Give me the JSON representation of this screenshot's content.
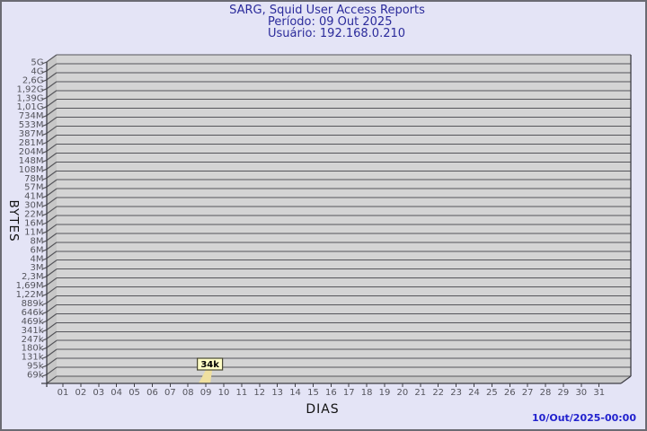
{
  "title": {
    "line1": "SARG, Squid User Access Reports",
    "line2": "Período: 09 Out 2025",
    "line3": "Usuário: 192.168.0.210"
  },
  "footer": {
    "timestamp": "10/Out/2025-00:00"
  },
  "colors": {
    "background": "#E4E4F6",
    "border": "#6B6B73",
    "wall": "#D4D4D4",
    "wall_side": "#C7C7C7",
    "grid": "#55555A",
    "edge": "#3F3F46",
    "tick_text": "#54545C",
    "axis_title_text": "#111111",
    "title_text": "#2B2B9B",
    "timestamp_text": "#2222CE",
    "bar": "#EFE0A0",
    "callout_fill": "#FFFDC6",
    "callout_border": "#474732",
    "callout_text": "#000000"
  },
  "chart_data": {
    "type": "bar",
    "title": "SARG, Squid User Access Reports",
    "subtitle": "Período: 09 Out 2025",
    "user_line": "Usuário: 192.168.0.210",
    "xlabel": "DIAS",
    "ylabel": "BYTES",
    "y_scale": "log",
    "y_axis_top_label": "5G",
    "y_axis_bottom_label": "69k",
    "grid": true,
    "y_ticks": [
      "5G",
      "4G",
      "2,6G",
      "1,92G",
      "1,39G",
      "1,01G",
      "734M",
      "533M",
      "387M",
      "281M",
      "204M",
      "148M",
      "108M",
      "78M",
      "57M",
      "41M",
      "30M",
      "22M",
      "16M",
      "11M",
      "8M",
      "6M",
      "4M",
      "3M",
      "2,3M",
      "1,69M",
      "1,22M",
      "889k",
      "646k",
      "469k",
      "341k",
      "247k",
      "180k",
      "131k",
      "95k",
      "69k"
    ],
    "x_categories": [
      "01",
      "02",
      "03",
      "04",
      "05",
      "06",
      "07",
      "08",
      "09",
      "10",
      "11",
      "12",
      "13",
      "14",
      "15",
      "16",
      "17",
      "18",
      "19",
      "20",
      "21",
      "22",
      "23",
      "24",
      "25",
      "26",
      "27",
      "28",
      "29",
      "30",
      "31"
    ],
    "values": [
      null,
      null,
      null,
      null,
      null,
      null,
      null,
      null,
      34000,
      null,
      null,
      null,
      null,
      null,
      null,
      null,
      null,
      null,
      null,
      null,
      null,
      null,
      null,
      null,
      null,
      null,
      null,
      null,
      null,
      null,
      null
    ],
    "points": [
      {
        "day": "09",
        "label": "34k",
        "value_bytes": 34000
      }
    ]
  }
}
